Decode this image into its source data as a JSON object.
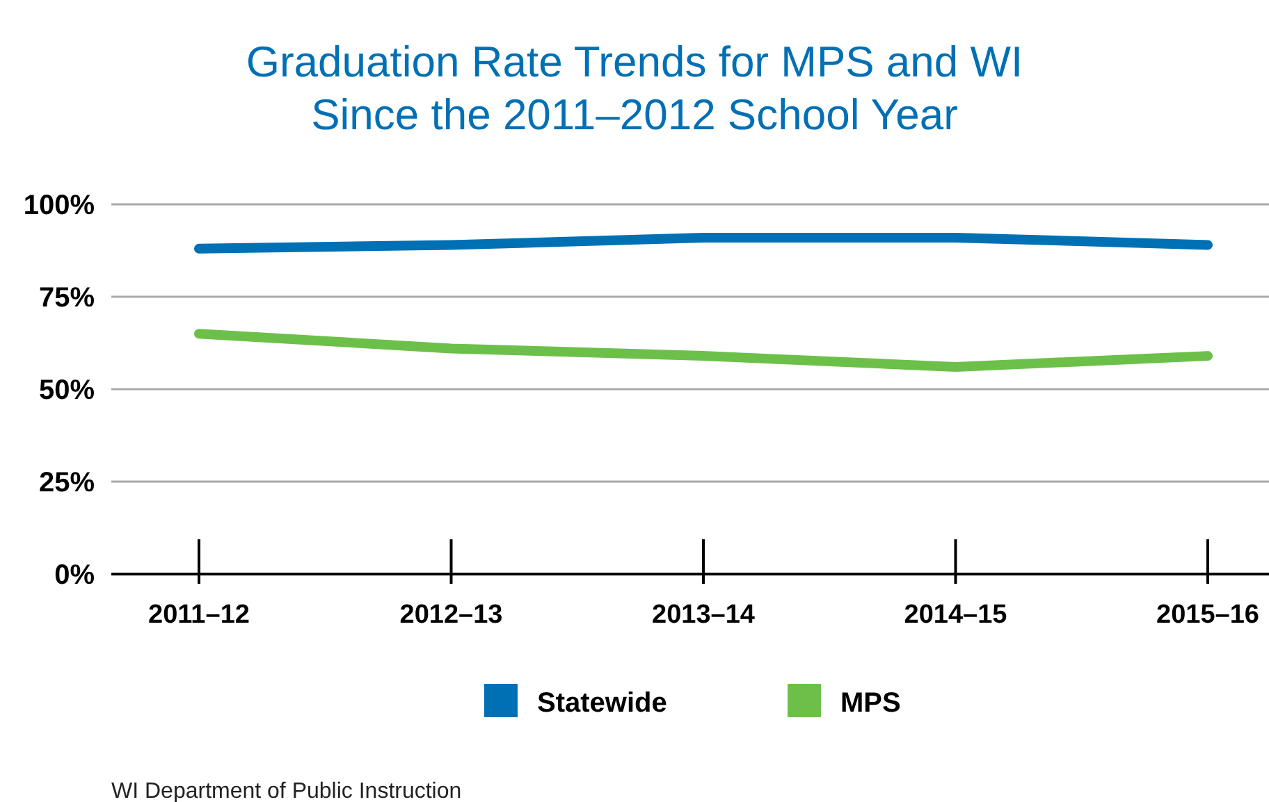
{
  "chart_data": {
    "type": "line",
    "title": "Graduation Rate Trends for MPS and WI\nSince the 2011–2012 School Year",
    "categories": [
      "2011–12",
      "2012–13",
      "2013–14",
      "2014–15",
      "2015–16"
    ],
    "series": [
      {
        "name": "Statewide",
        "color": "#0070b5",
        "values": [
          88,
          89,
          91,
          91,
          89
        ]
      },
      {
        "name": "MPS",
        "color": "#6cc04a",
        "values": [
          65,
          61,
          59,
          56,
          59
        ]
      }
    ],
    "ylim": [
      0,
      100
    ],
    "yticks": [
      {
        "value": 0,
        "label": "0%"
      },
      {
        "value": 25,
        "label": "25%"
      },
      {
        "value": 50,
        "label": "50%"
      },
      {
        "value": 75,
        "label": "75%"
      },
      {
        "value": 100,
        "label": "100%"
      }
    ],
    "grid": "y",
    "legend": "bottom",
    "marker": "none",
    "line_style": "solid",
    "annotations": [
      "WI Department of Public Instruction"
    ]
  }
}
